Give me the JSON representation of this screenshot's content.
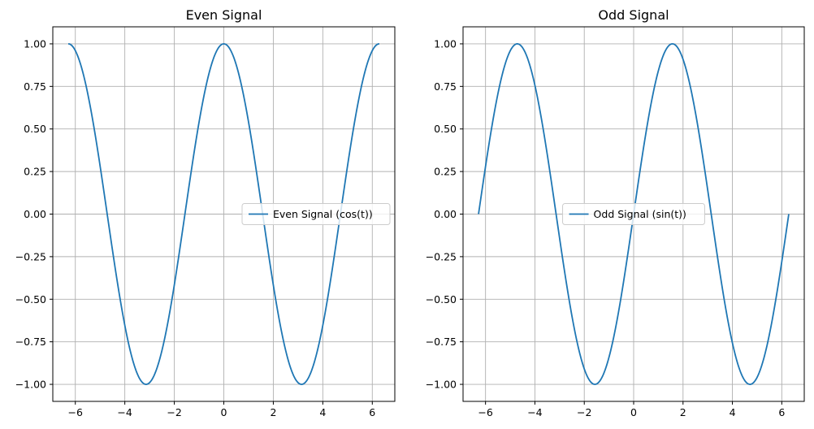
{
  "chart_data": [
    {
      "type": "line",
      "title": "Even Signal",
      "xlabel": "",
      "ylabel": "",
      "xlim": [
        -6.91,
        6.91
      ],
      "ylim": [
        -1.1,
        1.1
      ],
      "xticks": [
        -6,
        -4,
        -2,
        0,
        2,
        4,
        6
      ],
      "xtick_labels": [
        "−6",
        "−4",
        "−2",
        "0",
        "2",
        "4",
        "6"
      ],
      "yticks": [
        -1.0,
        -0.75,
        -0.5,
        -0.25,
        0.0,
        0.25,
        0.5,
        0.75,
        1.0
      ],
      "ytick_labels": [
        "−1.00",
        "−0.75",
        "−0.50",
        "−0.25",
        "0.00",
        "0.25",
        "0.50",
        "0.75",
        "1.00"
      ],
      "grid": true,
      "legend_position": "center-right",
      "series": [
        {
          "name": "Even Signal (cos(t))",
          "color": "#1f77b4",
          "x": [
            -6.283,
            -5.498,
            -4.712,
            -3.927,
            -3.142,
            -2.356,
            -1.571,
            -0.785,
            0,
            0.785,
            1.571,
            2.356,
            3.142,
            3.927,
            4.712,
            5.498,
            6.283
          ],
          "y": [
            1.0,
            0.707,
            0.0,
            -0.707,
            -1.0,
            -0.707,
            0.0,
            0.707,
            1.0,
            0.707,
            0.0,
            -0.707,
            -1.0,
            -0.707,
            0.0,
            0.707,
            1.0
          ]
        }
      ]
    },
    {
      "type": "line",
      "title": "Odd Signal",
      "xlabel": "",
      "ylabel": "",
      "xlim": [
        -6.91,
        6.91
      ],
      "ylim": [
        -1.1,
        1.1
      ],
      "xticks": [
        -6,
        -4,
        -2,
        0,
        2,
        4,
        6
      ],
      "xtick_labels": [
        "−6",
        "−4",
        "−2",
        "0",
        "2",
        "4",
        "6"
      ],
      "yticks": [
        -1.0,
        -0.75,
        -0.5,
        -0.25,
        0.0,
        0.25,
        0.5,
        0.75,
        1.0
      ],
      "ytick_labels": [
        "−1.00",
        "−0.75",
        "−0.50",
        "−0.25",
        "0.00",
        "0.25",
        "0.50",
        "0.75",
        "1.00"
      ],
      "grid": true,
      "legend_position": "center",
      "series": [
        {
          "name": "Odd Signal (sin(t))",
          "color": "#1f77b4",
          "x": [
            -6.283,
            -5.498,
            -4.712,
            -3.927,
            -3.142,
            -2.356,
            -1.571,
            -0.785,
            0,
            0.785,
            1.571,
            2.356,
            3.142,
            3.927,
            4.712,
            5.498,
            6.283
          ],
          "y": [
            0.0,
            0.707,
            1.0,
            0.707,
            0.0,
            -0.707,
            -1.0,
            -0.707,
            0.0,
            0.707,
            1.0,
            0.707,
            0.0,
            -0.707,
            -1.0,
            -0.707,
            0.0
          ]
        }
      ]
    }
  ]
}
